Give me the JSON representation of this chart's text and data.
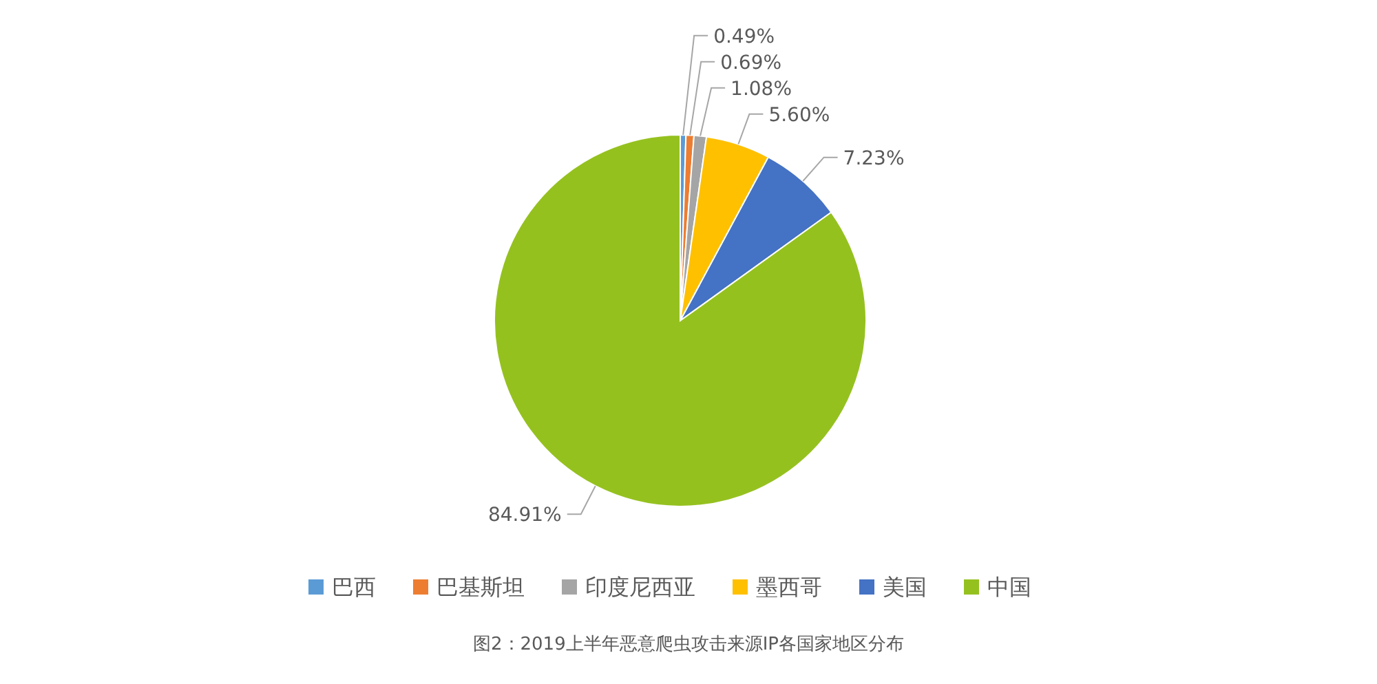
{
  "chart_data": {
    "type": "pie",
    "categories": [
      "巴西",
      "巴基斯坦",
      "印度尼西亚",
      "墨西哥",
      "美国",
      "中国"
    ],
    "values": [
      0.49,
      0.69,
      1.08,
      5.6,
      7.23,
      84.91
    ],
    "colors": [
      "#5b9bd5",
      "#ed7d31",
      "#a5a5a5",
      "#ffc000",
      "#4472c4",
      "#95c11f"
    ],
    "value_labels": [
      "0.49%",
      "0.69%",
      "1.08%",
      "5.60%",
      "7.23%",
      "84.91%"
    ],
    "legend": "bottom",
    "annotations": [
      "图2：2019上半年恶意爬虫攻击来源IP各国家地区分布"
    ]
  }
}
